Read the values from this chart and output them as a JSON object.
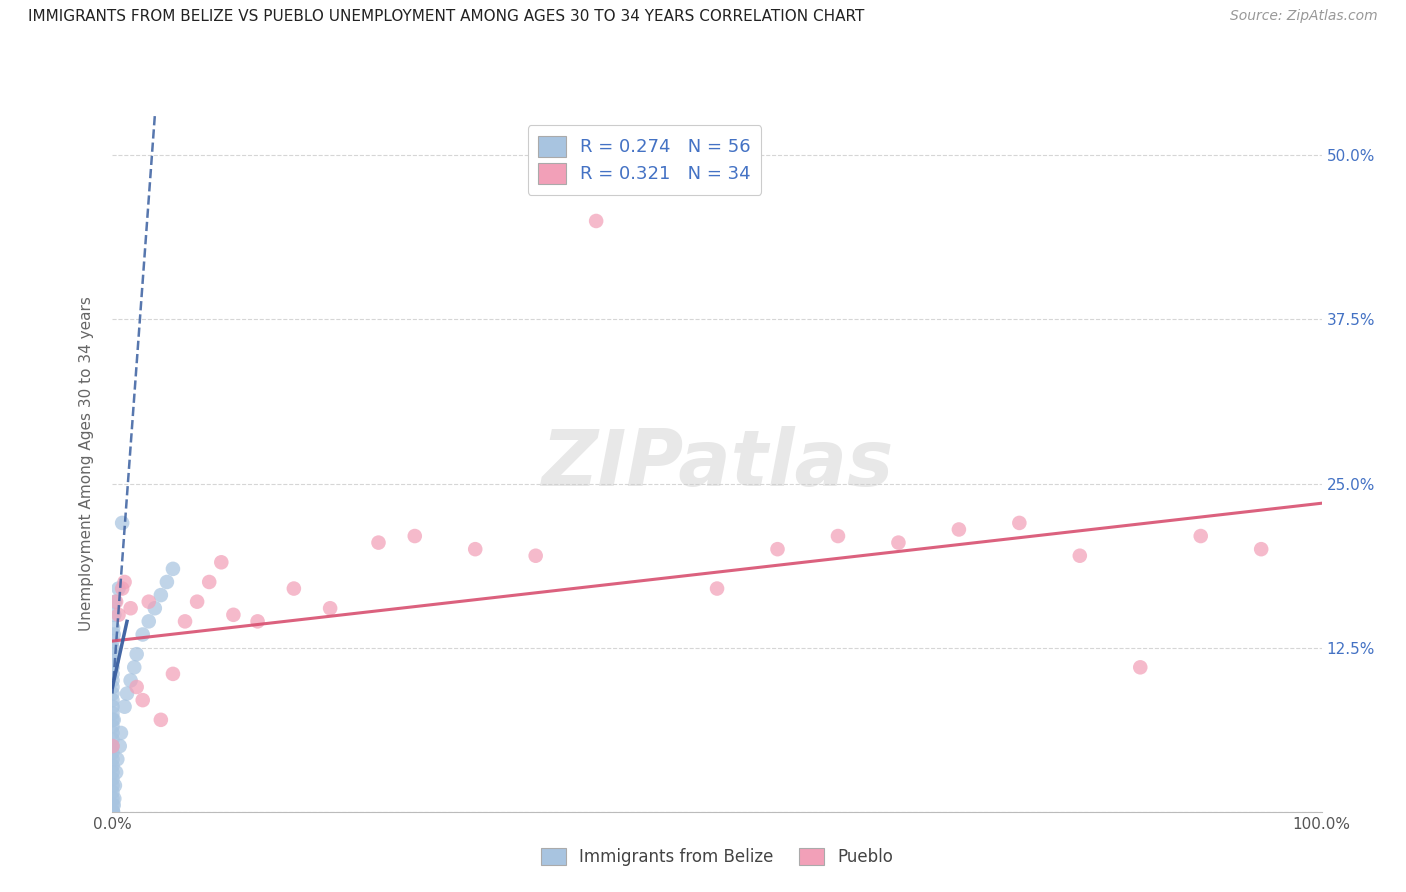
{
  "title": "IMMIGRANTS FROM BELIZE VS PUEBLO UNEMPLOYMENT AMONG AGES 30 TO 34 YEARS CORRELATION CHART",
  "source": "Source: ZipAtlas.com",
  "ylabel": "Unemployment Among Ages 30 to 34 years",
  "xlim": [
    0,
    100
  ],
  "ylim": [
    0,
    53
  ],
  "yticks": [
    0,
    12.5,
    25,
    37.5,
    50
  ],
  "yticklabels_right": [
    "",
    "12.5%",
    "25.0%",
    "37.5%",
    "50.0%"
  ],
  "belize_color": "#a8c4e0",
  "pueblo_color": "#f2a0b8",
  "belize_line_color": "#3a5fa0",
  "pueblo_line_color": "#d85070",
  "background_color": "#ffffff",
  "grid_color": "#cccccc",
  "belize_x": [
    0.0,
    0.0,
    0.0,
    0.0,
    0.0,
    0.0,
    0.0,
    0.0,
    0.0,
    0.0,
    0.0,
    0.0,
    0.0,
    0.0,
    0.0,
    0.0,
    0.0,
    0.0,
    0.0,
    0.0,
    0.0,
    0.0,
    0.0,
    0.0,
    0.0,
    0.0,
    0.0,
    0.0,
    0.0,
    0.0,
    0.05,
    0.05,
    0.1,
    0.1,
    0.1,
    0.15,
    0.15,
    0.2,
    0.2,
    0.3,
    0.4,
    0.5,
    0.6,
    0.7,
    0.8,
    1.0,
    1.2,
    1.5,
    1.8,
    2.0,
    2.5,
    3.0,
    3.5,
    4.0,
    4.5,
    5.0
  ],
  "belize_y": [
    0.0,
    0.0,
    0.0,
    0.0,
    0.5,
    1.0,
    1.5,
    2.0,
    2.5,
    3.0,
    3.5,
    4.0,
    4.5,
    5.0,
    5.5,
    6.0,
    6.5,
    7.0,
    7.5,
    8.0,
    8.5,
    9.0,
    9.5,
    10.0,
    10.5,
    11.0,
    11.5,
    12.0,
    12.5,
    13.0,
    0.0,
    14.0,
    0.5,
    7.0,
    13.5,
    1.0,
    15.0,
    2.0,
    16.0,
    3.0,
    4.0,
    17.0,
    5.0,
    6.0,
    22.0,
    8.0,
    9.0,
    10.0,
    11.0,
    12.0,
    13.5,
    14.5,
    15.5,
    16.5,
    17.5,
    18.5
  ],
  "pueblo_x": [
    0.0,
    0.3,
    0.5,
    0.8,
    1.0,
    1.5,
    2.0,
    2.5,
    3.0,
    4.0,
    5.0,
    6.0,
    7.0,
    8.0,
    9.0,
    10.0,
    12.0,
    15.0,
    18.0,
    22.0,
    25.0,
    30.0,
    35.0,
    40.0,
    50.0,
    55.0,
    60.0,
    65.0,
    70.0,
    75.0,
    80.0,
    85.0,
    90.0,
    95.0
  ],
  "pueblo_y": [
    5.0,
    16.0,
    15.0,
    17.0,
    17.5,
    15.5,
    9.5,
    8.5,
    16.0,
    7.0,
    10.5,
    14.5,
    16.0,
    17.5,
    19.0,
    15.0,
    14.5,
    17.0,
    15.5,
    20.5,
    21.0,
    20.0,
    19.5,
    45.0,
    17.0,
    20.0,
    21.0,
    20.5,
    21.5,
    22.0,
    19.5,
    11.0,
    21.0,
    20.0
  ],
  "belize_trend_x0": 0.0,
  "belize_trend_y0": 9.0,
  "belize_trend_x1": 3.5,
  "belize_trend_y1": 53.0,
  "pueblo_trend_x0": 0.0,
  "pueblo_trend_y0": 13.0,
  "pueblo_trend_x1": 100.0,
  "pueblo_trend_y1": 23.5
}
